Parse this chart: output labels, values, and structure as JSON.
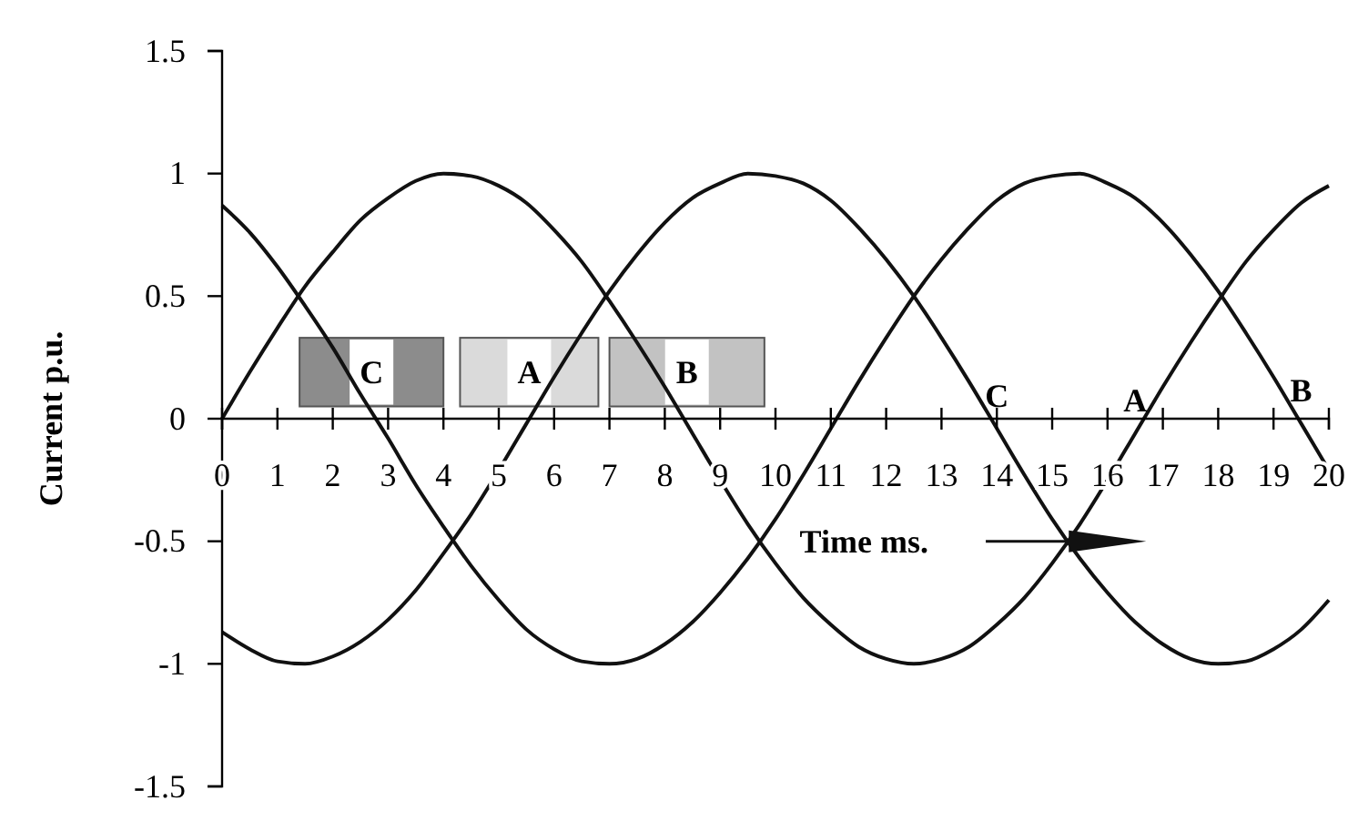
{
  "chart_data": {
    "type": "line",
    "xlabel": "Time ms.",
    "ylabel": "Current p.u.",
    "x": [
      0,
      0.5,
      1,
      1.5,
      2,
      2.5,
      3,
      3.5,
      4,
      4.5,
      5,
      5.5,
      6,
      6.5,
      7,
      7.5,
      8,
      8.5,
      9,
      9.5,
      10,
      10.5,
      11,
      11.5,
      12,
      12.5,
      13,
      13.5,
      14,
      14.5,
      15,
      15.5,
      16,
      16.5,
      17,
      17.5,
      18,
      18.5,
      19,
      19.5,
      20
    ],
    "series": [
      {
        "color": "#111111",
        "values": [
          0,
          0.19,
          0.37,
          0.54,
          0.68,
          0.81,
          0.9,
          0.97,
          1,
          0.99,
          0.95,
          0.88,
          0.77,
          0.64,
          0.48,
          0.31,
          0.13,
          -0.06,
          -0.25,
          -0.43,
          -0.59,
          -0.73,
          -0.84,
          -0.93,
          -0.98,
          -1,
          -0.98,
          -0.93,
          -0.84,
          -0.73,
          -0.59,
          -0.43,
          -0.25,
          -0.06,
          0.13,
          0.31,
          0.48,
          0.64,
          0.77,
          0.88,
          0.95
        ]
      },
      {
        "color": "#111111",
        "values": [
          -0.87,
          -0.94,
          -0.99,
          -1,
          -0.97,
          -0.91,
          -0.82,
          -0.7,
          -0.55,
          -0.39,
          -0.21,
          -0.02,
          0.17,
          0.35,
          0.52,
          0.67,
          0.8,
          0.9,
          0.96,
          1,
          0.99,
          0.96,
          0.89,
          0.78,
          0.65,
          0.5,
          0.33,
          0.15,
          -0.04,
          -0.23,
          -0.41,
          -0.57,
          -0.71,
          -0.83,
          -0.92,
          -0.98,
          -1,
          -0.99,
          -0.94,
          -0.86,
          -0.74
        ]
      },
      {
        "color": "#111111",
        "values": [
          0.87,
          0.76,
          0.62,
          0.46,
          0.29,
          0.1,
          -0.08,
          -0.27,
          -0.44,
          -0.6,
          -0.74,
          -0.86,
          -0.94,
          -0.99,
          -1,
          -0.98,
          -0.92,
          -0.83,
          -0.71,
          -0.57,
          -0.41,
          -0.23,
          -0.04,
          0.15,
          0.33,
          0.5,
          0.65,
          0.78,
          0.89,
          0.96,
          0.99,
          1,
          0.96,
          0.9,
          0.8,
          0.67,
          0.52,
          0.35,
          0.17,
          -0.02,
          -0.21
        ]
      }
    ],
    "xlim": [
      0,
      20
    ],
    "xticks": [
      0,
      1,
      2,
      3,
      4,
      5,
      6,
      7,
      8,
      9,
      10,
      11,
      12,
      13,
      14,
      15,
      16,
      17,
      18,
      19,
      20
    ],
    "ylim": [
      -1.5,
      1.5
    ],
    "yticks": [
      -1.5,
      -1,
      -0.5,
      0,
      0.5,
      1,
      1.5
    ],
    "bands": [
      {
        "axis": "x",
        "from": 1.4,
        "to": 4,
        "label": "C",
        "color": "#8c8c8c"
      },
      {
        "axis": "x",
        "from": 4.3,
        "to": 6.8,
        "label": "A",
        "color": "#dadada"
      },
      {
        "axis": "x",
        "from": 7,
        "to": 9.8,
        "label": "B",
        "color": "#c2c2c2"
      }
    ],
    "annotations": [
      {
        "text": "C",
        "x": 14,
        "y": -0.04
      },
      {
        "text": "A",
        "x": 16.5,
        "y": -0.06
      },
      {
        "text": "B",
        "x": 19.5,
        "y": -0.02
      }
    ],
    "grid": false,
    "marker": "none",
    "line_style": "solid"
  }
}
